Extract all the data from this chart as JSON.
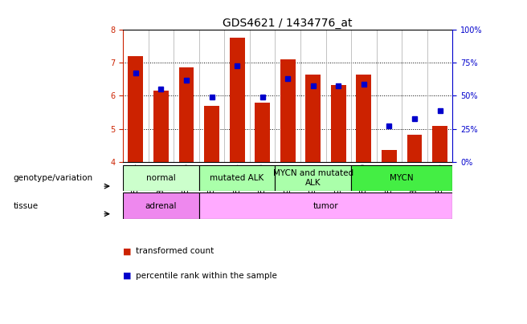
{
  "title": "GDS4621 / 1434776_at",
  "samples": [
    "GSM801624",
    "GSM801625",
    "GSM801626",
    "GSM801617",
    "GSM801618",
    "GSM801619",
    "GSM914181",
    "GSM914182",
    "GSM914183",
    "GSM801620",
    "GSM801621",
    "GSM801622",
    "GSM801623"
  ],
  "red_values": [
    7.2,
    6.15,
    6.85,
    5.7,
    7.75,
    5.8,
    7.1,
    6.65,
    6.32,
    6.65,
    4.37,
    4.82,
    5.1
  ],
  "blue_values": [
    6.7,
    6.2,
    6.47,
    5.97,
    6.9,
    5.97,
    6.52,
    6.3,
    6.3,
    6.35,
    5.1,
    5.3,
    5.55
  ],
  "ylim": [
    4.0,
    8.0
  ],
  "y2lim": [
    0,
    100
  ],
  "yticks": [
    4,
    5,
    6,
    7,
    8
  ],
  "y2ticks": [
    0,
    25,
    50,
    75,
    100
  ],
  "bar_bottom": 4.0,
  "red_color": "#cc2200",
  "blue_color": "#0000cc",
  "bar_width": 0.6,
  "genotype_groups": [
    {
      "label": "normal",
      "start": 0,
      "end": 3,
      "color": "#ccffcc"
    },
    {
      "label": "mutated ALK",
      "start": 3,
      "end": 6,
      "color": "#aaffaa"
    },
    {
      "label": "MYCN and mutated\nALK",
      "start": 6,
      "end": 9,
      "color": "#aaffaa"
    },
    {
      "label": "MYCN",
      "start": 9,
      "end": 13,
      "color": "#44ee44"
    }
  ],
  "tissue_groups": [
    {
      "label": "adrenal",
      "start": 0,
      "end": 3,
      "color": "#ee88ee"
    },
    {
      "label": "tumor",
      "start": 3,
      "end": 13,
      "color": "#ffaaff"
    }
  ],
  "background_color": "#ffffff",
  "title_fontsize": 10,
  "tick_fontsize": 7,
  "label_fontsize": 7.5,
  "row_label_fontsize": 7.5
}
